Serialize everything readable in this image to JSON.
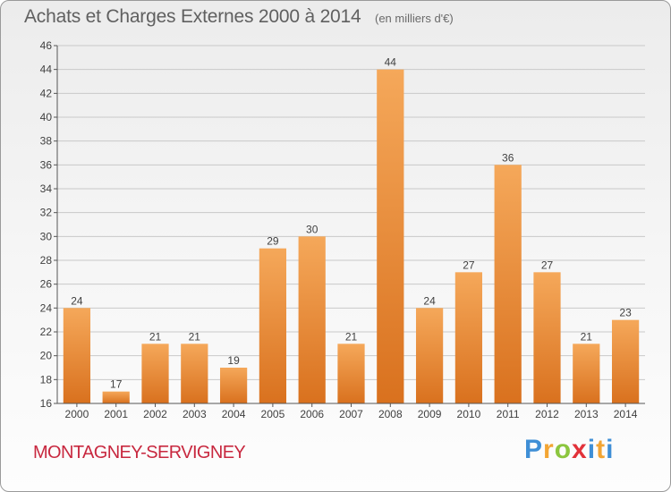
{
  "title": "Achats et Charges Externes 2000 à 2014",
  "subtitle": "(en milliers d'€)",
  "commune": "MONTAGNEY-SERVIGNEY",
  "brand": {
    "letters": [
      "P",
      "r",
      "o",
      "x",
      "i",
      "t",
      "i"
    ],
    "colors": [
      "#3f8fd6",
      "#f3a533",
      "#8cc63f",
      "#e2323a",
      "#3f8fd6",
      "#f3a533",
      "#3f8fd6"
    ]
  },
  "colors": {
    "bar_light": "#f5a85a",
    "bar_dark": "#d9711e",
    "grid": "#c9c9c9",
    "text": "#404040"
  },
  "chart_data": {
    "type": "bar",
    "categories": [
      "2000",
      "2001",
      "2002",
      "2003",
      "2004",
      "2005",
      "2006",
      "2007",
      "2008",
      "2009",
      "2010",
      "2011",
      "2012",
      "2013",
      "2014"
    ],
    "values": [
      24,
      17,
      21,
      21,
      19,
      29,
      30,
      21,
      44,
      24,
      27,
      36,
      27,
      21,
      23
    ],
    "data_labels": [
      "24",
      "17",
      "21",
      "21",
      "19",
      "29",
      "30",
      "21",
      "44",
      "24",
      "27",
      "36",
      "27",
      "21",
      "23"
    ],
    "ylim": [
      16,
      46
    ],
    "yticks": [
      "16",
      "18",
      "20",
      "22",
      "24",
      "26",
      "28",
      "30",
      "32",
      "34",
      "36",
      "38",
      "40",
      "42",
      "44",
      "46"
    ],
    "grid": true,
    "xlabel": "",
    "ylabel": ""
  }
}
